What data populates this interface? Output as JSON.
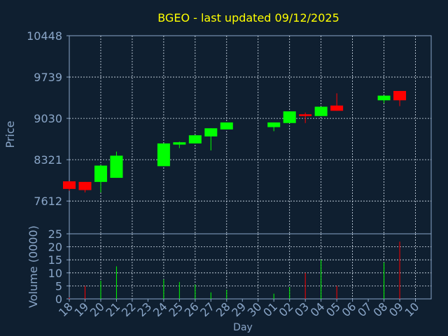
{
  "colors": {
    "background": "#0f1f30",
    "plot_background": "#0f1f30",
    "axis": "#8aa6c8",
    "grid": "#d8e4f0",
    "title": "#ffff00",
    "label": "#8aa6c8",
    "up": "#00ff00",
    "down": "#ff0000"
  },
  "chart_data": {
    "type": "candlestick",
    "title": "BGEO - last updated 09/12/2025",
    "price_panel": {
      "ylabel": "Price",
      "ylim": [
        7050,
        10448
      ],
      "yticks": [
        7612,
        8321,
        9030,
        9739,
        10448
      ],
      "grid": true
    },
    "volume_panel": {
      "ylabel": "Volume (0000)",
      "ylim": [
        0,
        25
      ],
      "yticks": [
        0,
        5,
        10,
        15,
        20,
        25
      ],
      "grid": true
    },
    "xlabel": "Day",
    "x_tick_labels": [
      "18",
      "19",
      "20",
      "21",
      "22",
      "23",
      "24",
      "25",
      "26",
      "27",
      "28",
      "29",
      "30",
      "01",
      "02",
      "03",
      "04",
      "05",
      "06",
      "07",
      "08",
      "09",
      "10"
    ],
    "grid_every_n_days": 2,
    "candles": [
      {
        "day": "18",
        "open": 7950,
        "high": 7950,
        "low": 7790,
        "close": 7820,
        "volume": 0.5
      },
      {
        "day": "19",
        "open": 7940,
        "high": 7940,
        "low": 7760,
        "close": 7800,
        "volume": 5
      },
      {
        "day": "20",
        "open": 7940,
        "high": 8230,
        "low": 7760,
        "close": 8220,
        "volume": 7
      },
      {
        "day": "21",
        "open": 8010,
        "high": 8460,
        "low": 8010,
        "close": 8390,
        "volume": 12.5
      },
      {
        "day": "24",
        "open": 8210,
        "high": 8600,
        "low": 8210,
        "close": 8600,
        "volume": 7.5
      },
      {
        "day": "25",
        "open": 8580,
        "high": 8630,
        "low": 8520,
        "close": 8620,
        "volume": 6.5
      },
      {
        "day": "26",
        "open": 8600,
        "high": 8740,
        "low": 8600,
        "close": 8740,
        "volume": 5.5
      },
      {
        "day": "27",
        "open": 8720,
        "high": 8860,
        "low": 8480,
        "close": 8860,
        "volume": 2.5
      },
      {
        "day": "28",
        "open": 8840,
        "high": 8960,
        "low": 8840,
        "close": 8960,
        "volume": 3.5
      },
      {
        "day": "01",
        "open": 8880,
        "high": 8960,
        "low": 8810,
        "close": 8960,
        "volume": 2
      },
      {
        "day": "02",
        "open": 8950,
        "high": 9150,
        "low": 8950,
        "close": 9150,
        "volume": 4.5
      },
      {
        "day": "03",
        "open": 9100,
        "high": 9130,
        "low": 8950,
        "close": 9070,
        "volume": 10
      },
      {
        "day": "04",
        "open": 9070,
        "high": 9230,
        "low": 9070,
        "close": 9230,
        "volume": 15
      },
      {
        "day": "05",
        "open": 9250,
        "high": 9460,
        "low": 9160,
        "close": 9160,
        "volume": 5
      },
      {
        "day": "08",
        "open": 9340,
        "high": 9420,
        "low": 9290,
        "close": 9420,
        "volume": 14
      },
      {
        "day": "09",
        "open": 9500,
        "high": 9500,
        "low": 9240,
        "close": 9340,
        "volume": 22
      }
    ]
  }
}
